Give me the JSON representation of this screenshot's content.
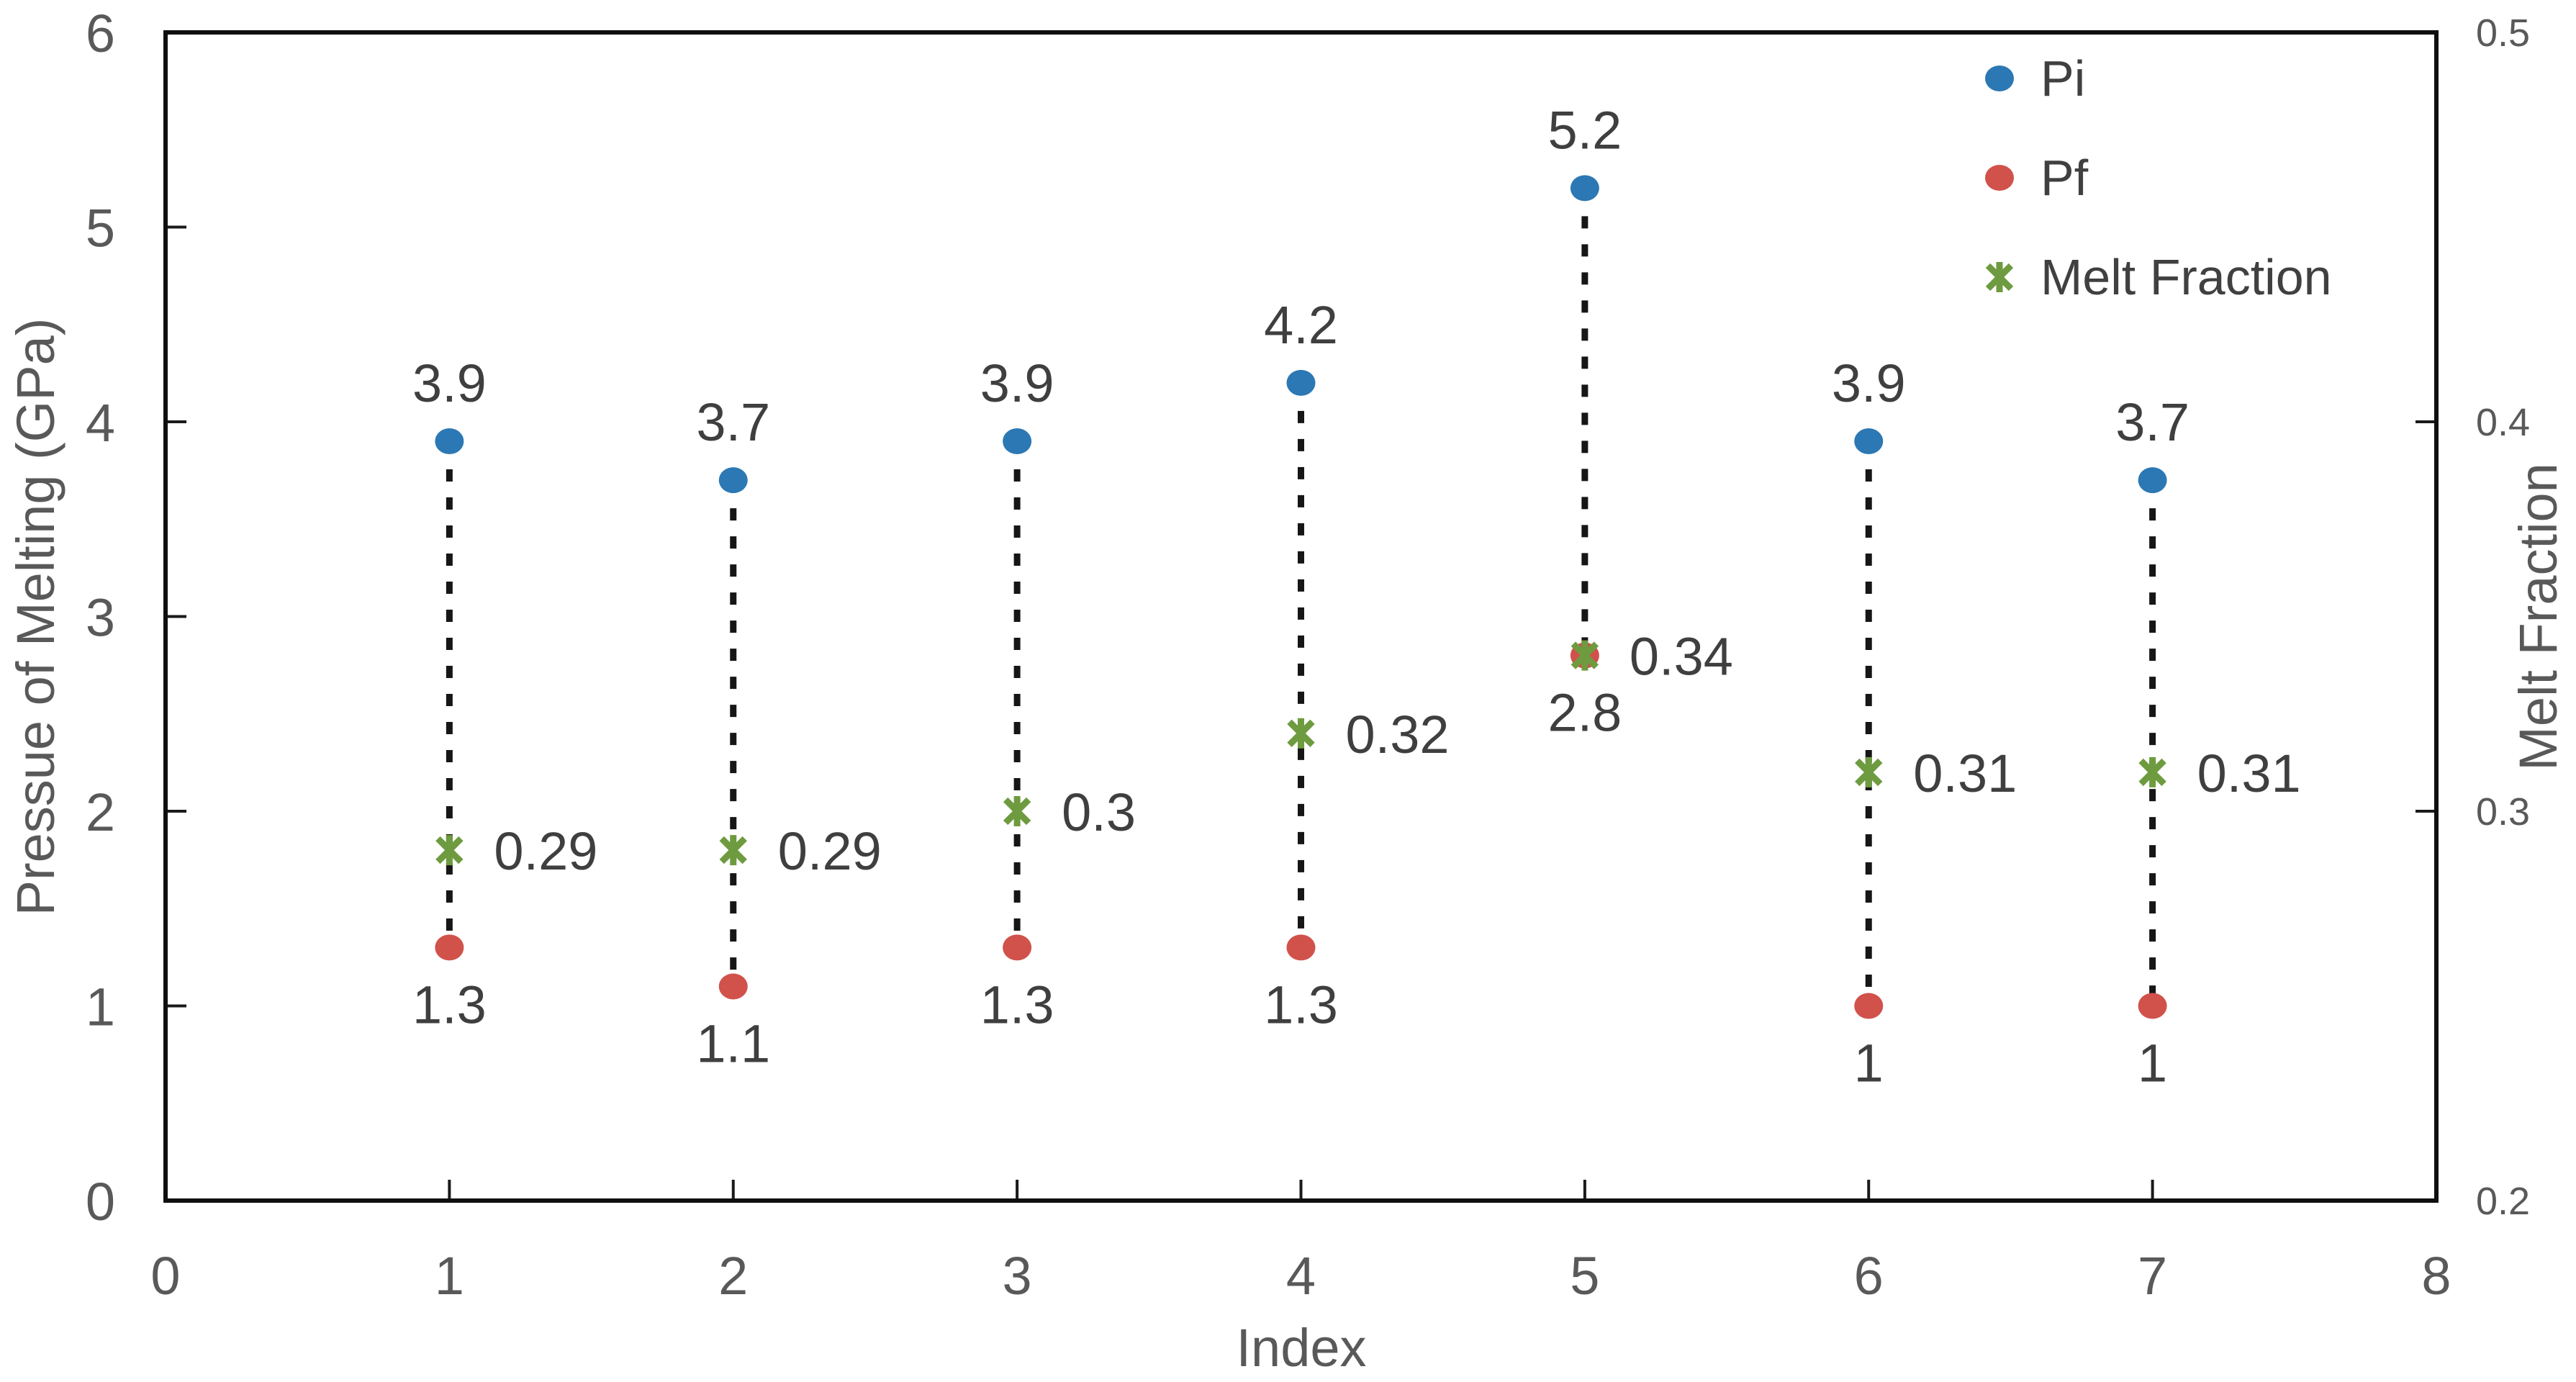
{
  "chart_data": {
    "type": "scatter",
    "title": "",
    "x": [
      1,
      2,
      3,
      4,
      5,
      6,
      7
    ],
    "series": [
      {
        "name": "Pi",
        "marker": "circle",
        "color": "#2B78B4",
        "axis": "left",
        "values": [
          3.9,
          3.7,
          3.9,
          4.2,
          5.2,
          3.9,
          3.7
        ]
      },
      {
        "name": "Pf",
        "marker": "circle",
        "color": "#D1514B",
        "axis": "left",
        "values": [
          1.3,
          1.1,
          1.3,
          1.3,
          2.8,
          1,
          1
        ]
      },
      {
        "name": "Melt Fraction",
        "marker": "star",
        "color": "#6E9B3F",
        "axis": "right",
        "values": [
          0.29,
          0.29,
          0.3,
          0.32,
          0.34,
          0.31,
          0.31
        ]
      }
    ],
    "connectors": {
      "between": [
        "Pi",
        "Pf"
      ],
      "style": "dashed",
      "color": "#161616"
    },
    "axes": {
      "x": {
        "title": "Index",
        "min": 0,
        "max": 8,
        "ticks": [
          0,
          1,
          2,
          3,
          4,
          5,
          6,
          7,
          8
        ]
      },
      "left": {
        "title": "Pressue of Melting (GPa)",
        "min": 0,
        "max": 6,
        "ticks": [
          0,
          1,
          2,
          3,
          4,
          5,
          6
        ]
      },
      "right": {
        "title": "Melt Fraction",
        "min": 0.2,
        "max": 0.5,
        "ticks": [
          0.2,
          0.3,
          0.4,
          0.5
        ]
      }
    },
    "legend": {
      "position": "top-right",
      "items": [
        {
          "label": "Pi",
          "marker": "circle",
          "color": "#2B78B4"
        },
        {
          "label": "Pf",
          "marker": "circle",
          "color": "#D1514B"
        },
        {
          "label": "Melt Fraction",
          "marker": "star",
          "color": "#6E9B3F"
        }
      ]
    },
    "grid": false,
    "plot_border_color": "#0f0f0f",
    "label_color": "#3f3f3f",
    "tick_color": "#595959"
  }
}
